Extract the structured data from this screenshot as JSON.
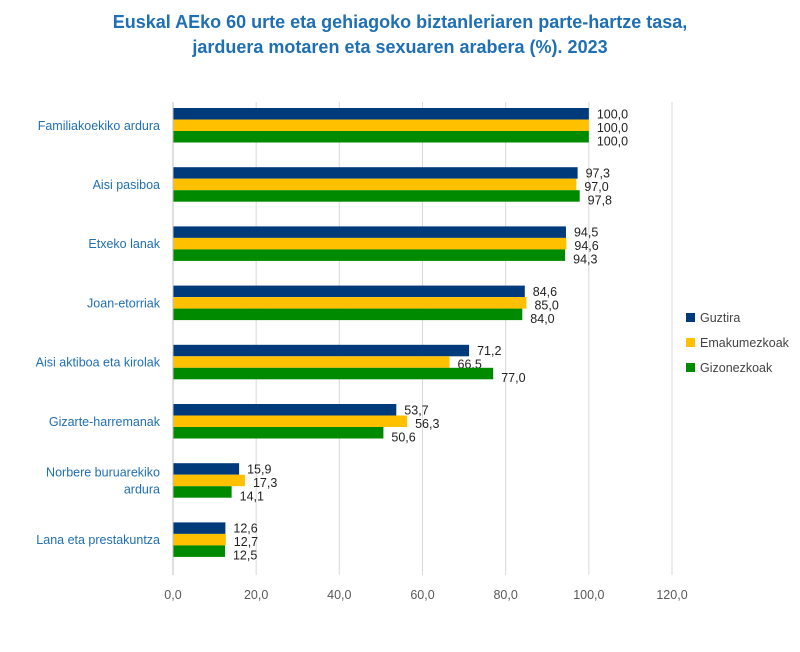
{
  "chart_data": {
    "type": "bar",
    "orientation": "horizontal",
    "title": "Euskal AEko 60 urte eta gehiagoko biztanleriaren parte-hartze tasa, jarduera motaren eta sexuaren arabera (%). 2023",
    "title_lines": [
      "Euskal AEko 60 urte eta gehiagoko biztanleriaren parte-hartze tasa,",
      "jarduera motaren eta sexuaren arabera (%). 2023"
    ],
    "categories": [
      "Familiakoekiko ardura",
      "Aisi pasiboa",
      "Etxeko lanak",
      "Joan-etorriak",
      "Aisi aktiboa eta kirolak",
      "Gizarte-harremanak",
      "Norbere buruarekiko ardura",
      "Lana eta prestakuntza"
    ],
    "category_lines": [
      [
        "Familiakoekiko ardura"
      ],
      [
        "Aisi pasiboa"
      ],
      [
        "Etxeko lanak"
      ],
      [
        "Joan-etorriak"
      ],
      [
        "Aisi aktiboa eta kirolak"
      ],
      [
        "Gizarte-harremanak"
      ],
      [
        "Norbere buruarekiko",
        "ardura"
      ],
      [
        "Lana eta prestakuntza"
      ]
    ],
    "series": [
      {
        "name": "Guztira",
        "color": "#003a7a",
        "values": [
          100.0,
          97.3,
          94.5,
          84.6,
          71.2,
          53.7,
          15.9,
          12.6
        ],
        "labels": [
          "100,0",
          "97,3",
          "94,5",
          "84,6",
          "71,2",
          "53,7",
          "15,9",
          "12,6"
        ]
      },
      {
        "name": "Emakumezkoak",
        "color": "#ffc000",
        "values": [
          100.0,
          97.0,
          94.6,
          85.0,
          66.5,
          56.3,
          17.3,
          12.7
        ],
        "labels": [
          "100,0",
          "97,0",
          "94,6",
          "85,0",
          "66,5",
          "56,3",
          "17,3",
          "12,7"
        ]
      },
      {
        "name": "Gizonezkoak",
        "color": "#008a00",
        "values": [
          100.0,
          97.8,
          94.3,
          84.0,
          77.0,
          50.6,
          14.1,
          12.5
        ],
        "labels": [
          "100,0",
          "97,8",
          "94,3",
          "84,0",
          "77,0",
          "50,6",
          "14,1",
          "12,5"
        ]
      }
    ],
    "xlim": [
      0,
      120
    ],
    "xticks": [
      0,
      20,
      40,
      60,
      80,
      100,
      120
    ],
    "xtick_labels": [
      "0,0",
      "20,0",
      "40,0",
      "60,0",
      "80,0",
      "100,0",
      "120,0"
    ],
    "grid": "vertical",
    "gridline_color": "#d9d9d9",
    "title_color": "#1f6fb5",
    "legend_position": "right"
  }
}
